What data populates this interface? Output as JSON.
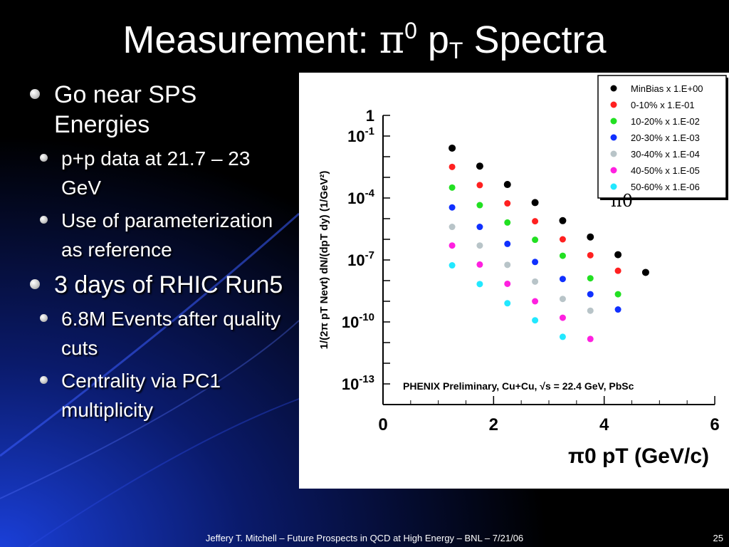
{
  "slide": {
    "title_prefix": "Measurement: ",
    "title_pi": "π",
    "title_sup": "0",
    "title_p": " p",
    "title_sub": "T",
    "title_suffix": " Spectra",
    "bullets": [
      {
        "text": "Go near SPS Energies",
        "sub": [
          "p+p data at 21.7 – 23 GeV",
          "Use of parameterization as reference"
        ]
      },
      {
        "text": "3 days of RHIC Run5",
        "sub": [
          "6.8M Events after quality cuts",
          "Centrality via PC1 multiplicity"
        ]
      }
    ],
    "footer": "Jeffery T. Mitchell – Future Prospects in QCD at High Energy – BNL – 7/21/06",
    "page_number": "25"
  },
  "chart_data": {
    "type": "scatter",
    "title": "",
    "xlabel": "π0 pT (GeV/c)",
    "ylabel": "1/(2π pT Nevt) dN/(dpT dy) (1/GeV²)",
    "xlim": [
      0,
      6
    ],
    "ylim": [
      1e-14,
      1
    ],
    "y_scale": "log",
    "x_ticks": [
      "0",
      "2",
      "4",
      "6"
    ],
    "y_ticks": [
      "1",
      "10-1",
      "10-4",
      "10-7",
      "10-10",
      "10-13"
    ],
    "legend_position": "top-right",
    "annotation": "PHENIX Preliminary, Cu+Cu, √s = 22.4 GeV, PbSc",
    "plot_label": "π0",
    "grid": false,
    "x": [
      1.25,
      1.75,
      2.25,
      2.75,
      3.25,
      3.75,
      4.25,
      4.75
    ],
    "series": [
      {
        "name": "MinBias x 1.E+00",
        "color": "#000000",
        "values": [
          0.026,
          0.0035,
          0.00045,
          6e-05,
          8e-06,
          1.3e-06,
          1.8e-07,
          2.5e-08
        ]
      },
      {
        "name": "0-10% x 1.E-01",
        "color": "#ff2020",
        "values": [
          0.0032,
          0.00042,
          5.5e-05,
          7.5e-06,
          1e-06,
          1.7e-07,
          3e-08
        ]
      },
      {
        "name": "10-20% x 1.E-02",
        "color": "#22e022",
        "values": [
          0.00032,
          4.5e-05,
          6.5e-06,
          9.5e-07,
          1.6e-07,
          1.3e-08,
          2.2e-09
        ]
      },
      {
        "name": "20-30% x 1.E-03",
        "color": "#1030ff",
        "values": [
          3.5e-05,
          4e-06,
          6e-07,
          8e-08,
          1.2e-08,
          2.2e-09,
          4e-10
        ]
      },
      {
        "name": "30-40% x 1.E-04",
        "color": "#b8c4c8",
        "values": [
          4e-06,
          5e-07,
          5.8e-08,
          9e-09,
          1.3e-09,
          3.5e-10
        ]
      },
      {
        "name": "40-50% x 1.E-05",
        "color": "#ff20e0",
        "values": [
          5e-07,
          6e-08,
          7e-09,
          1e-09,
          1.6e-10,
          1.5e-11
        ]
      },
      {
        "name": "50-60% x 1.E-06",
        "color": "#22e8ff",
        "values": [
          5.5e-08,
          6.8e-09,
          8e-10,
          1.2e-10,
          1.9e-11
        ]
      }
    ]
  }
}
